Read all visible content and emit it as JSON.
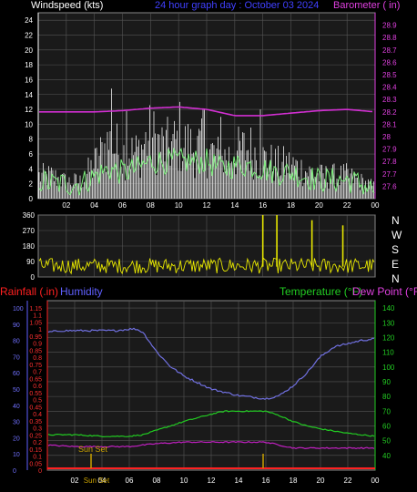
{
  "header": {
    "windspeed_label": "Windspeed (kts)",
    "graph_title": "24 hour graph day : October 03 2024",
    "barometer_label": "Barometer ( in)"
  },
  "lower_header": {
    "rainfall_label": "Rainfall (.in)",
    "humidity_label": "Humidity",
    "temperature_label": "Temperature (°F)",
    "dewpoint_label": "Dew Point (°F)"
  },
  "annotations": {
    "sun_set": "Sun Set",
    "sun_rise": "Sun Set"
  },
  "colors": {
    "windspeed_gust": "#d8d8d8",
    "windspeed_avg": "#7cf07c",
    "barometer": "#d22fd2",
    "wind_dir": "#e8e800",
    "humidity": "#7070e0",
    "temperature": "#22cc22",
    "dewpoint": "#c020c0",
    "rainfall": "#ff2020",
    "plot_bg": "#1a1a1a",
    "grid": "#555555"
  },
  "chart_data": [
    {
      "type": "line",
      "id": "wind",
      "xlabel": "",
      "x_ticks": [
        "02",
        "04",
        "06",
        "08",
        "10",
        "12",
        "14",
        "16",
        "18",
        "20",
        "22",
        "00"
      ],
      "ylabel": "Windspeed (kts)",
      "ylim": [
        0,
        25
      ],
      "y_ticks": [
        0,
        2,
        4,
        6,
        8,
        10,
        12,
        14,
        16,
        18,
        20,
        22,
        24
      ],
      "y2label": "Barometer ( in)",
      "y2lim": [
        27.5,
        29.0
      ],
      "y2_ticks": [
        "27.6",
        "27.7",
        "27.8",
        "27.9",
        "28",
        "28.1",
        "28.2",
        "28.3",
        "28.4",
        "28.5",
        "28.6",
        "28.7",
        "28.8",
        "28.9"
      ],
      "series": [
        {
          "name": "Windspeed (kts)",
          "kind": "gust",
          "hours": [
            0,
            1,
            2,
            3,
            4,
            5,
            6,
            7,
            8,
            9,
            10,
            11,
            12,
            13,
            14,
            15,
            16,
            17,
            18,
            19,
            20,
            21,
            22,
            23,
            24
          ],
          "values": [
            4,
            4,
            3,
            3,
            6,
            10,
            8,
            8,
            11,
            9,
            10,
            9,
            9,
            7,
            8,
            9,
            7,
            6,
            6,
            5,
            4,
            4,
            4,
            3,
            2
          ]
        },
        {
          "name": "Windspeed (kts)",
          "kind": "average",
          "hours": [
            0,
            1,
            2,
            3,
            4,
            5,
            6,
            7,
            8,
            9,
            10,
            11,
            12,
            13,
            14,
            15,
            16,
            17,
            18,
            19,
            20,
            21,
            22,
            23,
            24
          ],
          "values": [
            2.5,
            2,
            2,
            2,
            3,
            4,
            3.5,
            4,
            5,
            5,
            5,
            5,
            5,
            4,
            4.5,
            4.5,
            4,
            3.5,
            3.5,
            3,
            2.5,
            2.5,
            2.5,
            2,
            1
          ]
        },
        {
          "name": "Barometer ( in)",
          "axis": "y2",
          "hours": [
            0,
            2,
            4,
            6,
            8,
            10,
            12,
            14,
            16,
            18,
            20,
            22,
            24
          ],
          "values": [
            28.2,
            28.2,
            28.2,
            28.21,
            28.23,
            28.24,
            28.22,
            28.17,
            28.17,
            28.19,
            28.21,
            28.22,
            28.2
          ]
        }
      ],
      "peaks": [
        {
          "hour": 5.2,
          "value": 14.8
        },
        {
          "hour": 6.3,
          "value": 11.8
        },
        {
          "hour": 10.1,
          "value": 13
        },
        {
          "hour": 11.8,
          "value": 12.1
        },
        {
          "hour": 13,
          "value": 11
        },
        {
          "hour": 15.8,
          "value": 12
        }
      ]
    },
    {
      "type": "scatter",
      "id": "wind-direction",
      "x_ticks": [
        "02",
        "04",
        "06",
        "08",
        "10",
        "12",
        "14",
        "16",
        "18",
        "20",
        "22",
        "00"
      ],
      "ylim": [
        0,
        360
      ],
      "y_ticks": [
        0,
        90,
        180,
        270,
        360
      ],
      "right_labels": [
        "N",
        "W",
        "S",
        "E",
        "N"
      ],
      "typical_range": [
        20,
        110
      ],
      "spikes": [
        {
          "hour": 16,
          "value": 360
        },
        {
          "hour": 17,
          "value": 360
        },
        {
          "hour": 19.5,
          "value": 330
        },
        {
          "hour": 21.7,
          "value": 300
        }
      ]
    },
    {
      "type": "line",
      "id": "temp-humidity",
      "x_ticks": [
        "02",
        "04",
        "06",
        "08",
        "10",
        "12",
        "14",
        "16",
        "18",
        "20",
        "22",
        "00"
      ],
      "y_left_rain": {
        "label": "Rainfall (.in)",
        "ylim": [
          0,
          1.2
        ],
        "ticks": [
          "0",
          "0.05",
          "0.1",
          "0.15",
          "0.2",
          "0.25",
          "0.3",
          "0.35",
          "0.4",
          "0.45",
          "0.5",
          "0.55",
          "0.6",
          "0.65",
          "0.7",
          "0.75",
          "0.8",
          "0.85",
          "0.9",
          "0.95",
          "1",
          "1.05",
          "1.1",
          "1.15"
        ]
      },
      "y_left_humidity": {
        "label": "Humidity",
        "ylim": [
          0,
          100
        ],
        "ticks": [
          0,
          10,
          20,
          30,
          40,
          50,
          60,
          70,
          80,
          90,
          100
        ]
      },
      "y_right": {
        "label": "Temperature (°F)",
        "ylim": [
          30,
          145
        ],
        "ticks": [
          40,
          50,
          60,
          70,
          80,
          90,
          100,
          110,
          120,
          130,
          140
        ]
      },
      "series": [
        {
          "name": "Humidity",
          "axis": "humidity",
          "hours": [
            0,
            1,
            2,
            3,
            4,
            5,
            6,
            6.5,
            7,
            8,
            9,
            10,
            11,
            12,
            13,
            14,
            15,
            16,
            17,
            18,
            19,
            20,
            21,
            22,
            23,
            24
          ],
          "values": [
            85,
            86,
            86,
            86,
            86,
            86,
            87,
            87,
            85,
            73,
            64,
            58,
            54,
            50,
            48,
            46,
            45,
            44,
            46,
            52,
            60,
            70,
            76,
            78,
            80,
            81
          ]
        },
        {
          "name": "Temperature (°F)",
          "axis": "temp",
          "hours": [
            0,
            2,
            4,
            6,
            7,
            8,
            10,
            12,
            13,
            14,
            15,
            16,
            17,
            18,
            19,
            20,
            22,
            24
          ],
          "values": [
            54,
            54,
            53,
            53,
            54,
            57,
            63,
            68,
            70,
            70,
            70,
            70,
            67,
            63,
            60,
            58,
            55,
            53
          ]
        },
        {
          "name": "Dew Point (°F)",
          "axis": "temp",
          "hours": [
            0,
            2,
            4,
            6,
            8,
            10,
            12,
            14,
            16,
            17,
            18,
            20,
            22,
            24
          ],
          "values": [
            47,
            46,
            46,
            46,
            48,
            49,
            49,
            49,
            49,
            47,
            45,
            45,
            45,
            45
          ]
        },
        {
          "name": "Rainfall (.in)",
          "axis": "rain",
          "hours": [
            0,
            24
          ],
          "values": [
            0,
            0
          ]
        }
      ],
      "markers": [
        {
          "hour": 3.2,
          "label": "Sun Set"
        },
        {
          "hour": 15.8,
          "label": ""
        }
      ]
    }
  ]
}
